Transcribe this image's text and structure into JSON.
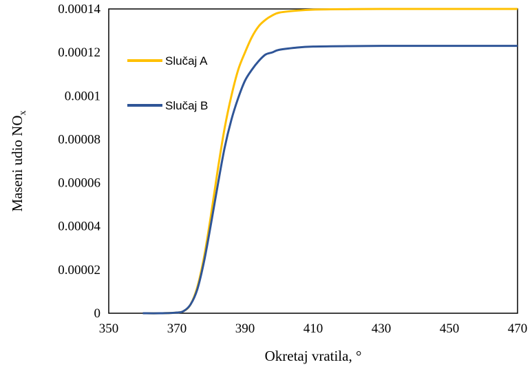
{
  "chart_data": {
    "type": "line",
    "xlabel": "Okretaj vratila, °",
    "ylabel_main": "Maseni udio NO",
    "ylabel_sub": "x",
    "xlim": [
      350,
      470
    ],
    "ylim": [
      0,
      0.00014
    ],
    "xticks": [
      "350",
      "370",
      "390",
      "410",
      "430",
      "450",
      "470"
    ],
    "yticks": [
      "0",
      "0.00002",
      "0.00004",
      "0.00006",
      "0.00008",
      "0.0001",
      "0.00012",
      "0.00014"
    ],
    "grid": false,
    "legend_position": "upper-left",
    "x": [
      360,
      365,
      370,
      372,
      374,
      376,
      378,
      380,
      382,
      384,
      386,
      388,
      390,
      392,
      394,
      396,
      398,
      400,
      405,
      410,
      420,
      430,
      440,
      450,
      460,
      470
    ],
    "series": [
      {
        "name": "Slučaj A",
        "color": "#FFC000",
        "values": [
          0,
          0,
          3e-07,
          1e-06,
          4e-06,
          1.2e-05,
          2.6e-05,
          4.5e-05,
          6.6e-05,
          8.5e-05,
          0.0001,
          0.000112,
          0.00012,
          0.000127,
          0.000132,
          0.000135,
          0.000137,
          0.0001383,
          0.0001392,
          0.0001397,
          0.0001399,
          0.00014,
          0.00014,
          0.00014,
          0.00014,
          0.00014
        ]
      },
      {
        "name": "Slučaj B",
        "color": "#2F5597",
        "values": [
          0,
          0,
          3e-07,
          1e-06,
          4e-06,
          1.1e-05,
          2.4e-05,
          4.1e-05,
          5.9e-05,
          7.6e-05,
          8.9e-05,
          9.9e-05,
          0.000107,
          0.000112,
          0.000116,
          0.000119,
          0.00012,
          0.0001212,
          0.0001222,
          0.0001227,
          0.0001229,
          0.000123,
          0.000123,
          0.000123,
          0.000123,
          0.000123
        ]
      }
    ]
  }
}
